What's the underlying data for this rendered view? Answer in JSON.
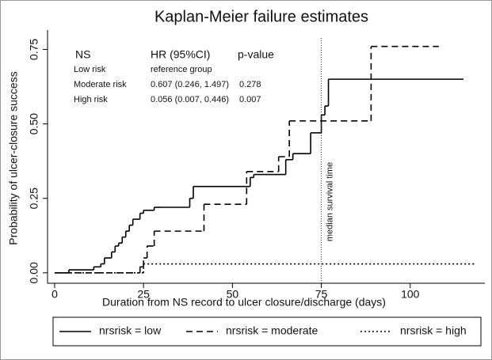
{
  "chart_data": {
    "type": "step",
    "title": "Kaplan-Meier failure estimates",
    "x_label": "Duration from NS record to ulcer closure/discharge (days)",
    "y_label": "Probability of ulcer-closure success",
    "xlim": [
      -2,
      121
    ],
    "ylim": [
      -0.035,
      0.815
    ],
    "xticks": [
      0,
      25,
      50,
      75,
      100
    ],
    "yticks": [
      {
        "value": 0,
        "label": "0.00"
      },
      {
        "value": 0.25,
        "label": "0.25"
      },
      {
        "value": 0.5,
        "label": "0.50"
      },
      {
        "value": 0.75,
        "label": "0.75"
      }
    ],
    "series": [
      {
        "name": "nrsrisk = low",
        "color": "#000000",
        "dash": "solid",
        "x": [
          0,
          4,
          11,
          13,
          14,
          16,
          17,
          18,
          19,
          20,
          21,
          22,
          24,
          25,
          28,
          30,
          38,
          39,
          55,
          56,
          65,
          67,
          72,
          75,
          76,
          77,
          115
        ],
        "values": [
          0,
          0.01,
          0.02,
          0.03,
          0.05,
          0.07,
          0.09,
          0.1,
          0.12,
          0.14,
          0.16,
          0.18,
          0.2,
          0.21,
          0.22,
          0.22,
          0.25,
          0.29,
          0.32,
          0.33,
          0.38,
          0.4,
          0.47,
          0.53,
          0.56,
          0.65,
          0.65
        ]
      },
      {
        "name": "nrsrisk = moderate",
        "color": "#000000",
        "dash": "dashed",
        "x": [
          0,
          24,
          25,
          26,
          28,
          42,
          54,
          63,
          66,
          89,
          108
        ],
        "values": [
          0,
          0.02,
          0.05,
          0.09,
          0.14,
          0.23,
          0.34,
          0.39,
          0.51,
          0.76,
          0.76
        ]
      },
      {
        "name": "nrsrisk = high",
        "color": "#000000",
        "dash": "dotted",
        "x": [
          0,
          25,
          118
        ],
        "values": [
          0,
          0.03,
          0.03
        ]
      }
    ],
    "median_line": {
      "x": 75,
      "label": "median survival time"
    },
    "annotation_table": {
      "header": [
        "NS",
        "HR (95%CI)",
        "p-value"
      ],
      "rows": [
        [
          "Low risk",
          "reference group"
        ],
        [
          "Moderate risk",
          "0.607 (0.246, 1.497)",
          "0.278"
        ],
        [
          "High risk",
          "0.056 (0.007, 0.446)",
          "0.007"
        ]
      ]
    }
  }
}
